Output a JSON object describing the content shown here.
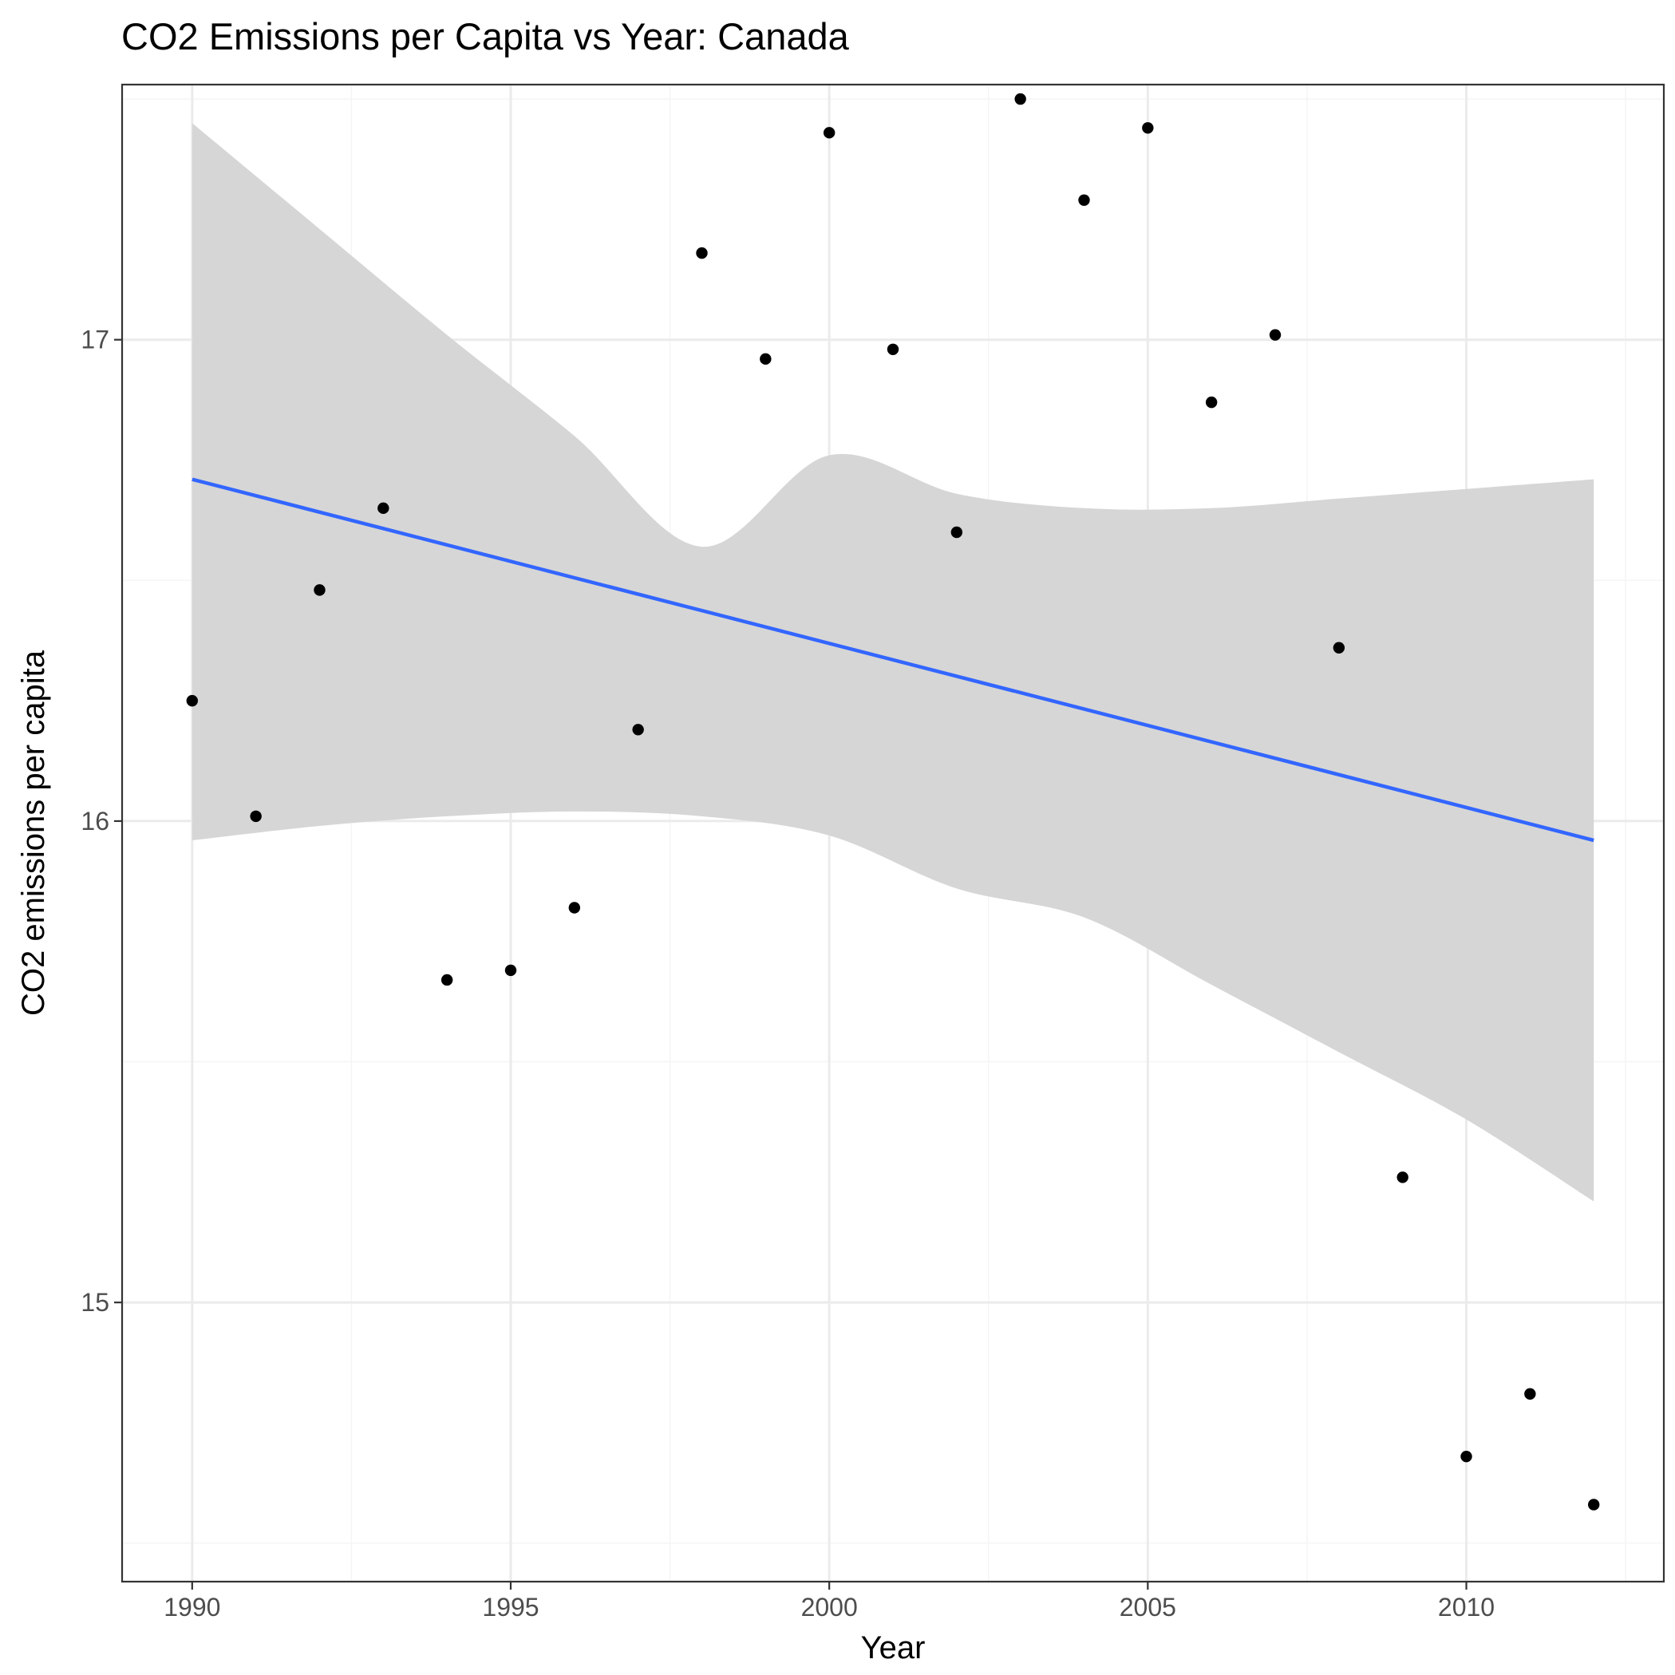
{
  "chart_data": {
    "type": "scatter",
    "title": "CO2 Emissions per Capita vs Year: Canada",
    "xlabel": "Year",
    "ylabel": "CO2 emissions per capita",
    "xlim": [
      1988.9,
      2013.1
    ],
    "ylim": [
      14.42,
      17.53
    ],
    "x_ticks": [
      1990,
      1995,
      2000,
      2005,
      2010
    ],
    "x_tick_labels": [
      "1990",
      "1995",
      "2000",
      "2005",
      "2010"
    ],
    "x_minor_ticks": [
      1992.5,
      1997.5,
      2002.5,
      2007.5,
      2012.5
    ],
    "y_ticks": [
      15,
      16,
      17
    ],
    "y_tick_labels": [
      "15",
      "16",
      "17"
    ],
    "y_minor_ticks": [
      14.5,
      15.5,
      16.5,
      17.5
    ],
    "grid": true,
    "legend": "none",
    "series": [
      {
        "points": [
          {
            "x": 1990,
            "y": 16.25
          },
          {
            "x": 1991,
            "y": 16.01
          },
          {
            "x": 1992,
            "y": 16.48
          },
          {
            "x": 1993,
            "y": 16.65
          },
          {
            "x": 1994,
            "y": 15.67
          },
          {
            "x": 1995,
            "y": 15.69
          },
          {
            "x": 1996,
            "y": 15.82
          },
          {
            "x": 1997,
            "y": 16.19
          },
          {
            "x": 1998,
            "y": 17.18
          },
          {
            "x": 1999,
            "y": 16.96
          },
          {
            "x": 2000,
            "y": 17.43
          },
          {
            "x": 2001,
            "y": 16.98
          },
          {
            "x": 2002,
            "y": 16.6
          },
          {
            "x": 2003,
            "y": 17.5
          },
          {
            "x": 2004,
            "y": 17.29
          },
          {
            "x": 2005,
            "y": 17.44
          },
          {
            "x": 2006,
            "y": 16.87
          },
          {
            "x": 2007,
            "y": 17.01
          },
          {
            "x": 2008,
            "y": 16.36
          },
          {
            "x": 2009,
            "y": 15.26
          },
          {
            "x": 2010,
            "y": 14.68
          },
          {
            "x": 2011,
            "y": 14.81
          },
          {
            "x": 2012,
            "y": 14.58
          }
        ],
        "color": "#000000"
      }
    ],
    "regression_line": {
      "x": [
        1990,
        2012
      ],
      "y": [
        16.71,
        15.96
      ],
      "color": "#3366ff"
    },
    "confidence_band": {
      "color": "#d6d6d6",
      "points": [
        {
          "x": 1990,
          "upper": 17.45,
          "lower": 15.96
        },
        {
          "x": 1992,
          "upper": 17.23,
          "lower": 15.99
        },
        {
          "x": 1994,
          "upper": 17.01,
          "lower": 16.01
        },
        {
          "x": 1996,
          "upper": 16.8,
          "lower": 16.02
        },
        {
          "x": 1998,
          "upper": 16.57,
          "lower": 16.01
        },
        {
          "x": 2000,
          "upper": 16.76,
          "lower": 15.97
        },
        {
          "x": 2002,
          "upper": 16.68,
          "lower": 15.86
        },
        {
          "x": 2004,
          "upper": 16.65,
          "lower": 15.8
        },
        {
          "x": 2006,
          "upper": 16.65,
          "lower": 15.66
        },
        {
          "x": 2008,
          "upper": 16.67,
          "lower": 15.52
        },
        {
          "x": 2010,
          "upper": 16.69,
          "lower": 15.38
        },
        {
          "x": 2012,
          "upper": 16.71,
          "lower": 15.21
        }
      ]
    },
    "colors": {
      "background": "#ffffff",
      "panel_border": "#333333",
      "grid_major": "#ebebeb",
      "grid_minor": "#f5f5f5",
      "tick_text": "#4d4d4d"
    }
  }
}
